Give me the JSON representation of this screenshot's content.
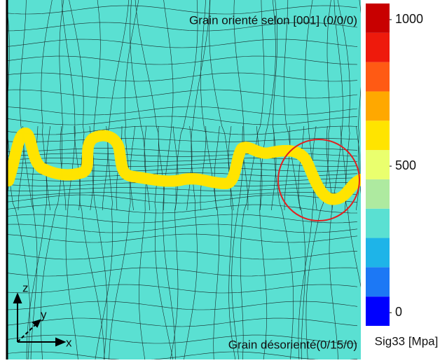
{
  "chart_data": {
    "type": "mesh-contour",
    "title": "Grain orienté selon [001] (0/0/0)",
    "subtitle": "Grain désorienté(0/15/0)",
    "axes_labels": [
      "z",
      "y",
      "x"
    ],
    "background_color": "#5ae0d2",
    "colorbar": {
      "label": "Sig33 [Mpa]",
      "lim": [
        -45,
        1055
      ],
      "levels": [
        -45,
        55,
        155,
        255,
        355,
        455,
        555,
        655,
        755,
        855,
        955,
        1055
      ],
      "colors": [
        "#0000ff",
        "#1c78f5",
        "#1eb4e8",
        "#5ae0d2",
        "#aeeaa0",
        "#eaff6e",
        "#ffe400",
        "#ffa800",
        "#ff5a14",
        "#ee1a0c",
        "#c80000"
      ],
      "ticks": [
        0,
        500,
        1000
      ]
    }
  }
}
